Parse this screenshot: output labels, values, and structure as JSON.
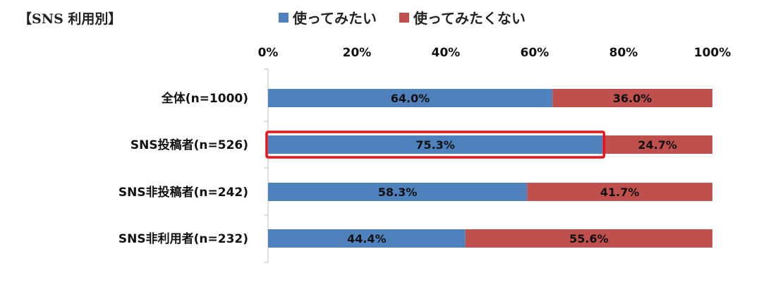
{
  "chart_data": {
    "type": "bar",
    "orientation": "horizontal",
    "stacked": true,
    "title": "【SNS 利用別】",
    "categories": [
      "全体(n=1000)",
      "SNS投稿者(n=526)",
      "SNS非投稿者(n=242)",
      "SNS非利用者(n=232)"
    ],
    "series": [
      {
        "name": "使ってみたい",
        "values": [
          64.0,
          75.3,
          58.3,
          44.4
        ],
        "color": "#4F81BD"
      },
      {
        "name": "使ってみたくない",
        "values": [
          36.0,
          24.7,
          41.7,
          55.6
        ],
        "color": "#C0504D"
      }
    ],
    "value_labels": [
      [
        "64.0%",
        "75.3%",
        "58.3%",
        "44.4%"
      ],
      [
        "36.0%",
        "24.7%",
        "41.7%",
        "55.6%"
      ]
    ],
    "xticks": [
      "0%",
      "20%",
      "40%",
      "60%",
      "80%",
      "100%"
    ],
    "xlim": [
      0,
      100
    ],
    "grid": false,
    "legend_position": "top",
    "highlight": {
      "category_index": 1,
      "series_index": 0,
      "color": "#E8141A"
    }
  }
}
